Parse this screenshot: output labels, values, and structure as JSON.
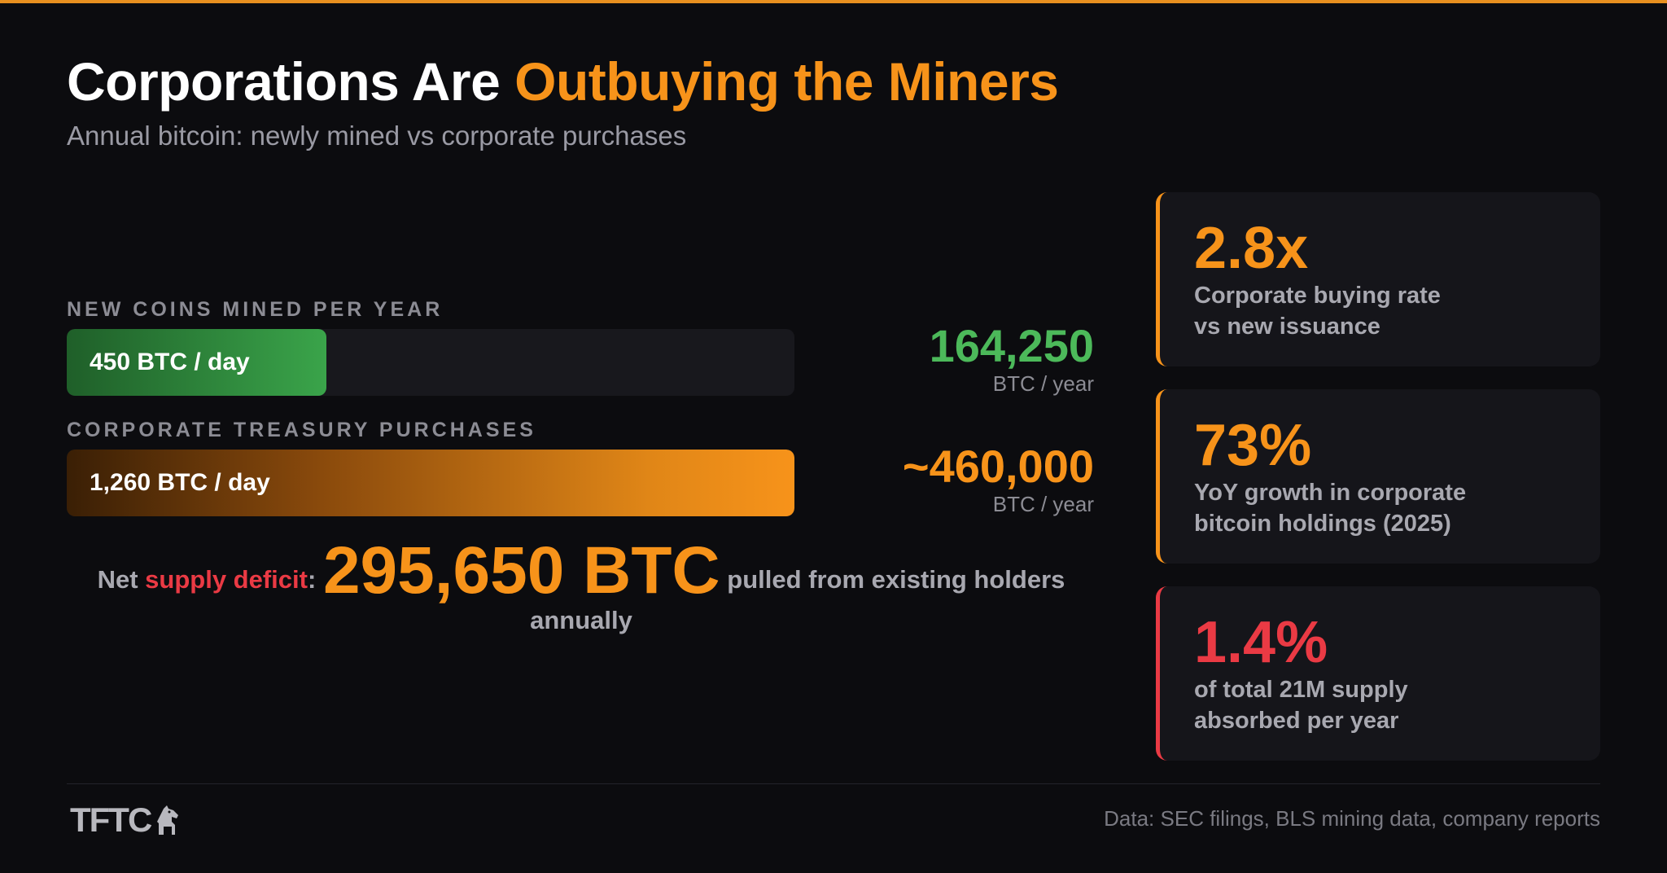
{
  "header": {
    "title_plain": "Corporations Are",
    "title_accent": "Outbuying the Miners",
    "subtitle": "Annual bitcoin: newly mined vs corporate purchases"
  },
  "chart_data": {
    "type": "bar",
    "orientation": "horizontal",
    "title": "Corporations Are Outbuying the Miners",
    "subtitle": "Annual bitcoin: newly mined vs corporate purchases",
    "categories": [
      "NEW COINS MINED PER YEAR",
      "CORPORATE TREASURY PURCHASES"
    ],
    "values": [
      450,
      1260
    ],
    "value_unit": "BTC / day",
    "bars": [
      {
        "label": "NEW COINS MINED PER YEAR",
        "value": 450,
        "bar_text": "450 BTC / day",
        "annual_value": "164,250",
        "annual_unit": "BTC / year",
        "color": "#3aa44a"
      },
      {
        "label": "CORPORATE TREASURY PURCHASES",
        "value": 1260,
        "bar_text": "1,260 BTC / day",
        "annual_value": "~460,000",
        "annual_unit": "BTC / year",
        "color": "#f7931a"
      }
    ],
    "xlim": [
      0,
      1260
    ]
  },
  "deficit": {
    "prefix": "Net ",
    "highlight": "supply deficit",
    "colon": ":",
    "amount": "295,650 BTC",
    "suffix": "pulled from existing holders annually"
  },
  "stats": [
    {
      "value": "2.8x",
      "desc_line1": "Corporate buying rate",
      "desc_line2": "vs new issuance",
      "color": "#f7931a"
    },
    {
      "value": "73%",
      "desc_line1": "YoY growth in corporate",
      "desc_line2": "bitcoin holdings (2025)",
      "color": "#f7931a"
    },
    {
      "value": "1.4%",
      "desc_line1": "of total 21M supply",
      "desc_line2": "absorbed per year",
      "color": "#ea3a44"
    }
  ],
  "footer": {
    "logo": "TFTC",
    "logo_icon": "horse-icon",
    "source": "Data: SEC filings, BLS mining data, company reports"
  },
  "colors": {
    "background": "#0c0c0f",
    "accent_orange": "#f7931a",
    "accent_green": "#3aa44a",
    "accent_red": "#ea3a44"
  }
}
